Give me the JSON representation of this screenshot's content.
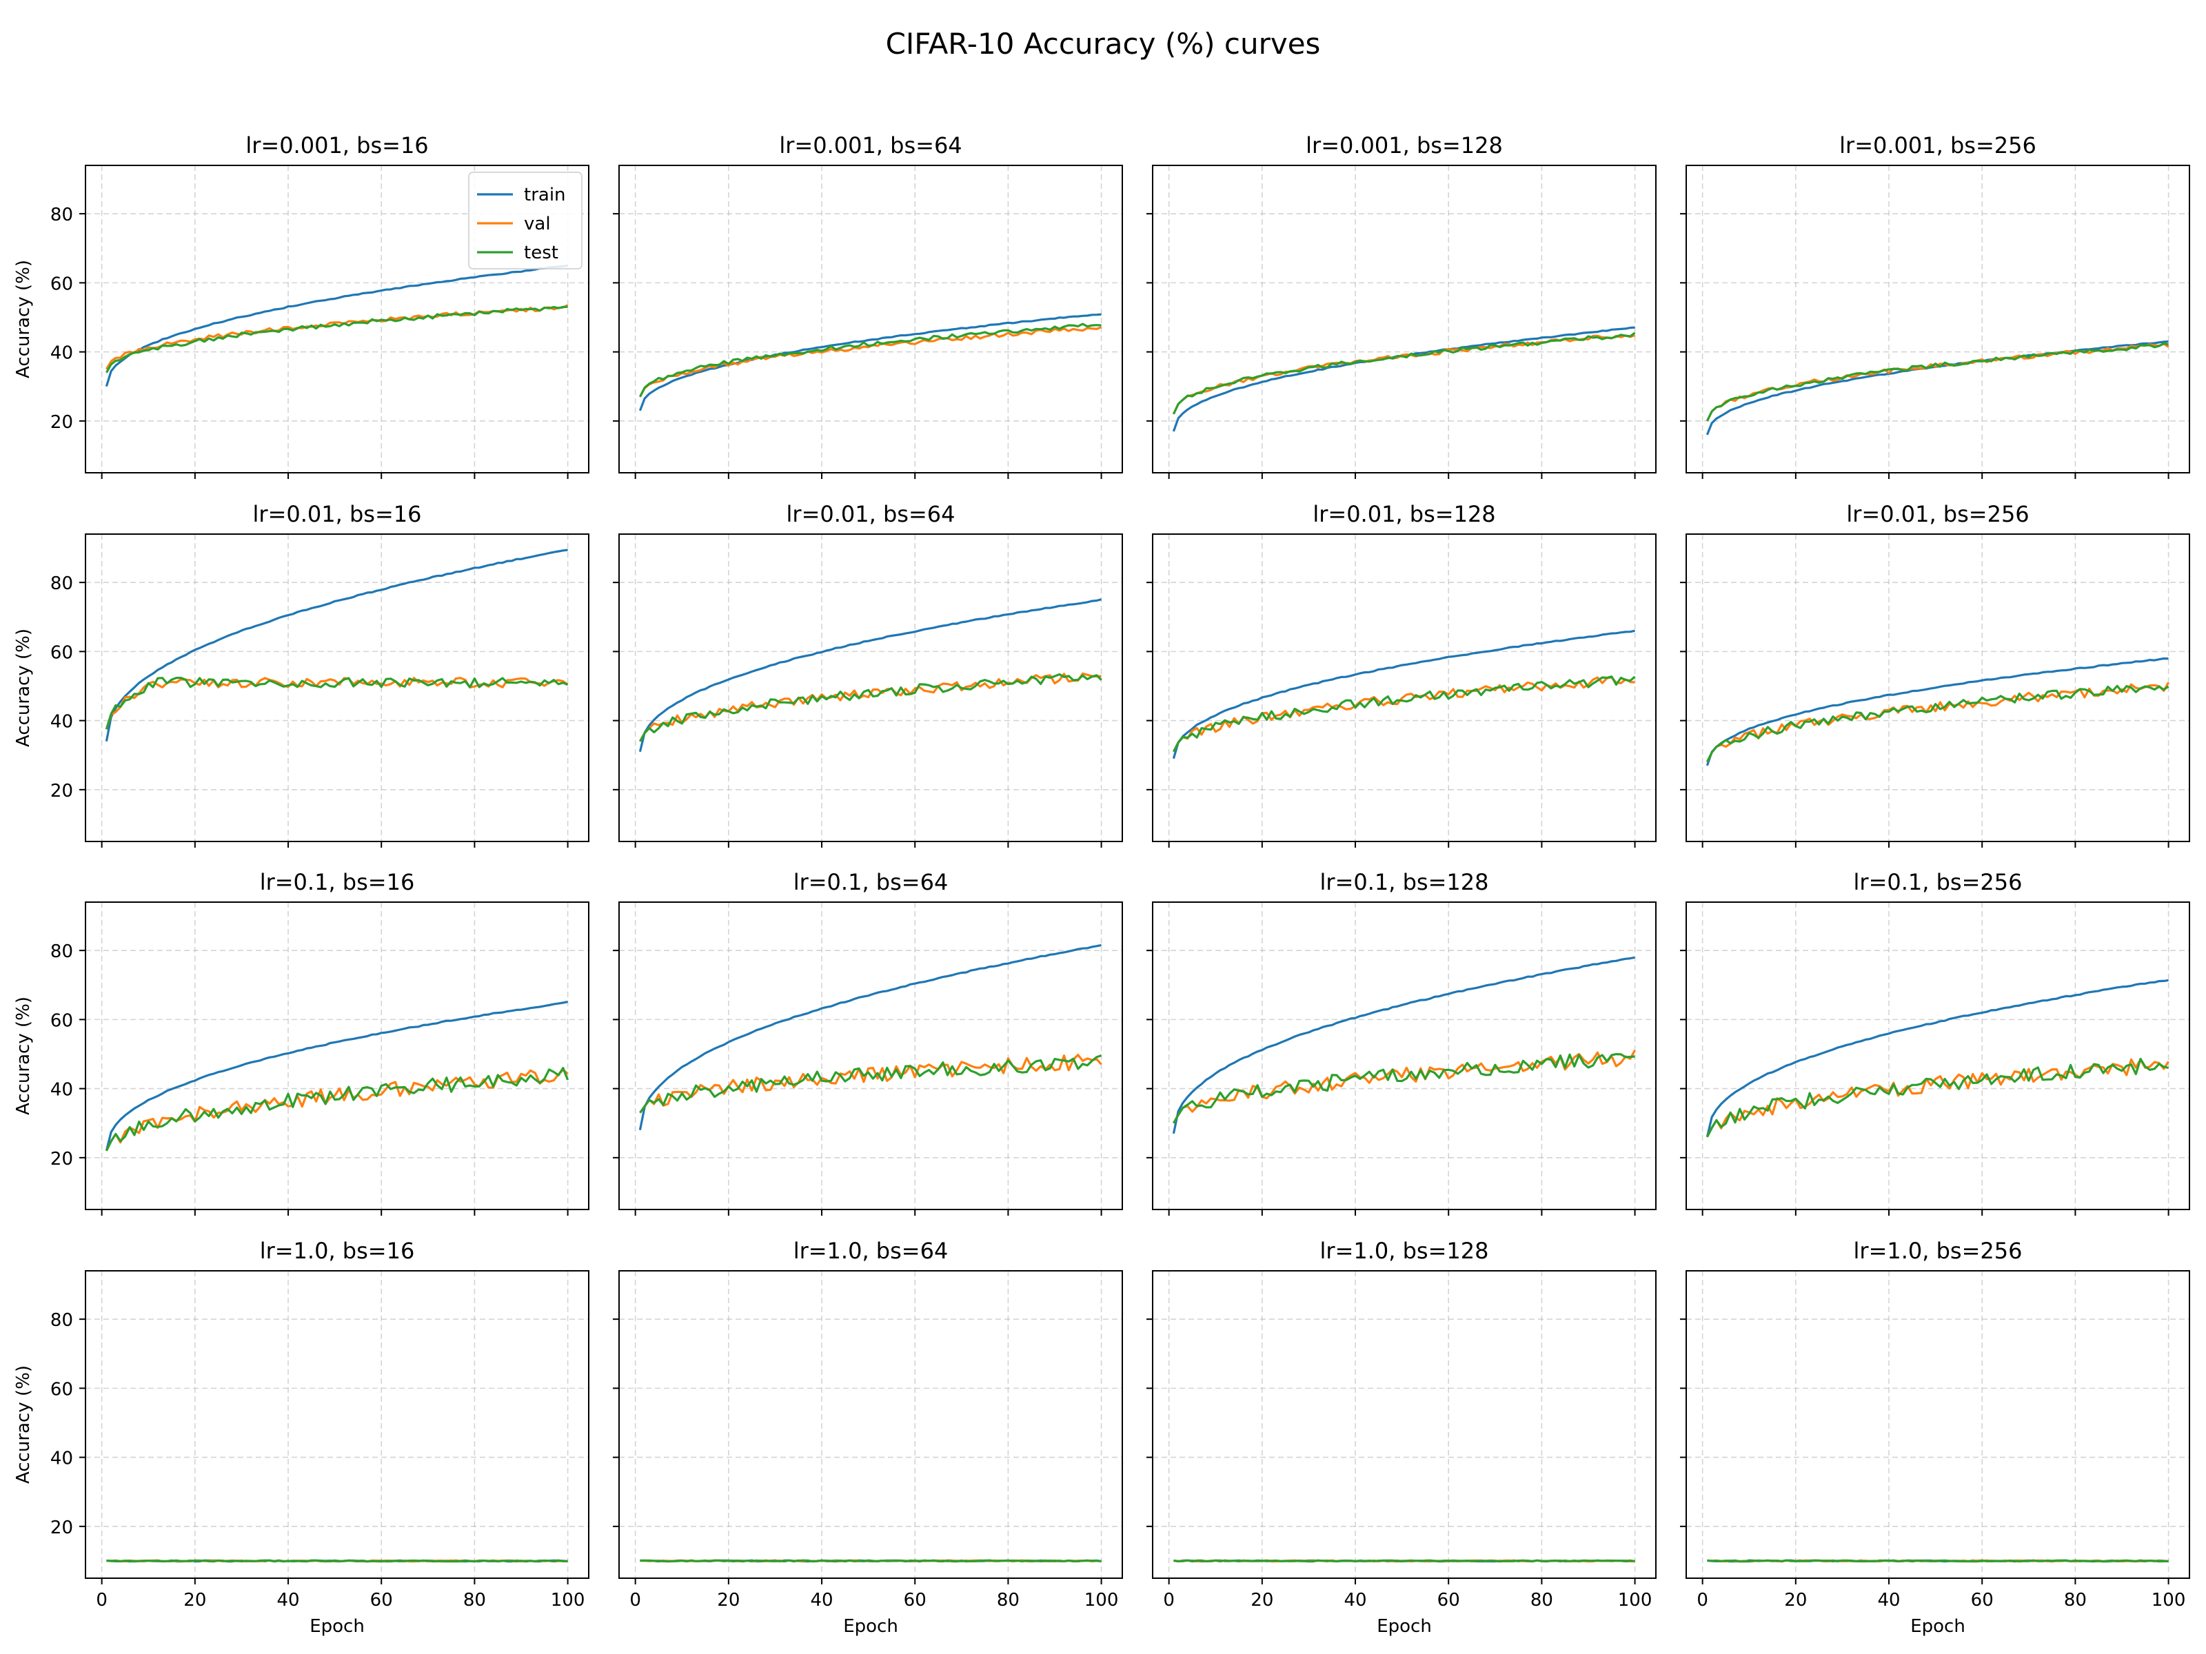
{
  "figure": {
    "title": "CIFAR-10 Accuracy (%) curves",
    "ylabel": "Accuracy (%)",
    "xlabel": "Epoch",
    "xticks": [
      0,
      20,
      40,
      60,
      80,
      100
    ],
    "yticks": [
      20,
      40,
      60,
      80
    ],
    "legend": [
      "train",
      "val",
      "test"
    ]
  },
  "colors": {
    "train": "#1f77b4",
    "val": "#ff7f0e",
    "test": "#2ca02c",
    "grid": "#b0b0b0"
  },
  "chart_data": [
    {
      "type": "line",
      "title": "lr=0.001, bs=16",
      "xlim": [
        -3.5,
        104.5
      ],
      "ylim": [
        5,
        94
      ],
      "grid": true,
      "legend": "top-right",
      "series": [
        {
          "name": "train",
          "trend": {
            "start": 30,
            "end": 65
          }
        },
        {
          "name": "val",
          "trend": {
            "start": 35,
            "end": 53
          }
        },
        {
          "name": "test",
          "trend": {
            "start": 34,
            "end": 53
          }
        }
      ]
    },
    {
      "type": "line",
      "title": "lr=0.001, bs=64",
      "xlim": [
        -3.5,
        104.5
      ],
      "ylim": [
        5,
        94
      ],
      "grid": true,
      "series": [
        {
          "name": "train",
          "trend": {
            "start": 23,
            "end": 51
          }
        },
        {
          "name": "val",
          "trend": {
            "start": 27,
            "end": 47
          }
        },
        {
          "name": "test",
          "trend": {
            "start": 27,
            "end": 48
          }
        }
      ]
    },
    {
      "type": "line",
      "title": "lr=0.001, bs=128",
      "xlim": [
        -3.5,
        104.5
      ],
      "ylim": [
        5,
        94
      ],
      "grid": true,
      "series": [
        {
          "name": "train",
          "trend": {
            "start": 17,
            "end": 47
          }
        },
        {
          "name": "val",
          "trend": {
            "start": 22,
            "end": 45
          }
        },
        {
          "name": "test",
          "trend": {
            "start": 22,
            "end": 45
          }
        }
      ]
    },
    {
      "type": "line",
      "title": "lr=0.001, bs=256",
      "xlim": [
        -3.5,
        104.5
      ],
      "ylim": [
        5,
        94
      ],
      "grid": true,
      "series": [
        {
          "name": "train",
          "trend": {
            "start": 16,
            "end": 43
          }
        },
        {
          "name": "val",
          "trend": {
            "start": 20,
            "end": 42
          }
        },
        {
          "name": "test",
          "trend": {
            "start": 20,
            "end": 42
          }
        }
      ]
    },
    {
      "type": "line",
      "title": "lr=0.01, bs=16",
      "xlim": [
        -3.5,
        104.5
      ],
      "ylim": [
        5,
        94
      ],
      "grid": true,
      "series": [
        {
          "name": "train",
          "trend": {
            "start": 34,
            "end": 89.5
          }
        },
        {
          "name": "val",
          "trend": {
            "start": 37,
            "end": 51,
            "plateau": true
          }
        },
        {
          "name": "test",
          "trend": {
            "start": 37,
            "end": 51,
            "plateau": true
          }
        }
      ]
    },
    {
      "type": "line",
      "title": "lr=0.01, bs=64",
      "xlim": [
        -3.5,
        104.5
      ],
      "ylim": [
        5,
        94
      ],
      "grid": true,
      "series": [
        {
          "name": "train",
          "trend": {
            "start": 31,
            "end": 75
          }
        },
        {
          "name": "val",
          "trend": {
            "start": 34,
            "end": 53
          }
        },
        {
          "name": "test",
          "trend": {
            "start": 34,
            "end": 53
          }
        }
      ]
    },
    {
      "type": "line",
      "title": "lr=0.01, bs=128",
      "xlim": [
        -3.5,
        104.5
      ],
      "ylim": [
        5,
        94
      ],
      "grid": true,
      "series": [
        {
          "name": "train",
          "trend": {
            "start": 29,
            "end": 66
          }
        },
        {
          "name": "val",
          "trend": {
            "start": 31,
            "end": 52
          }
        },
        {
          "name": "test",
          "trend": {
            "start": 31,
            "end": 52
          }
        }
      ]
    },
    {
      "type": "line",
      "title": "lr=0.01, bs=256",
      "xlim": [
        -3.5,
        104.5
      ],
      "ylim": [
        5,
        94
      ],
      "grid": true,
      "series": [
        {
          "name": "train",
          "trend": {
            "start": 27,
            "end": 58
          }
        },
        {
          "name": "val",
          "trend": {
            "start": 28,
            "end": 50
          }
        },
        {
          "name": "test",
          "trend": {
            "start": 28,
            "end": 50
          }
        }
      ]
    },
    {
      "type": "line",
      "title": "lr=0.1, bs=16",
      "xlim": [
        -3.5,
        104.5
      ],
      "ylim": [
        5,
        94
      ],
      "grid": true,
      "series": [
        {
          "name": "train",
          "trend": {
            "start": 22,
            "end": 65
          }
        },
        {
          "name": "val",
          "trend": {
            "start": 22,
            "end": 44
          }
        },
        {
          "name": "test",
          "trend": {
            "start": 22,
            "end": 44
          }
        }
      ]
    },
    {
      "type": "line",
      "title": "lr=0.1, bs=64",
      "xlim": [
        -3.5,
        104.5
      ],
      "ylim": [
        5,
        94
      ],
      "grid": true,
      "series": [
        {
          "name": "train",
          "trend": {
            "start": 28,
            "end": 81.5
          }
        },
        {
          "name": "val",
          "trend": {
            "start": 33,
            "end": 48
          }
        },
        {
          "name": "test",
          "trend": {
            "start": 33,
            "end": 48
          }
        }
      ]
    },
    {
      "type": "line",
      "title": "lr=0.1, bs=128",
      "xlim": [
        -3.5,
        104.5
      ],
      "ylim": [
        5,
        94
      ],
      "grid": true,
      "series": [
        {
          "name": "train",
          "trend": {
            "start": 27,
            "end": 78
          }
        },
        {
          "name": "val",
          "trend": {
            "start": 30,
            "end": 49
          }
        },
        {
          "name": "test",
          "trend": {
            "start": 30,
            "end": 49
          }
        }
      ]
    },
    {
      "type": "line",
      "title": "lr=0.1, bs=256",
      "xlim": [
        -3.5,
        104.5
      ],
      "ylim": [
        5,
        94
      ],
      "grid": true,
      "series": [
        {
          "name": "train",
          "trend": {
            "start": 26,
            "end": 71.5
          }
        },
        {
          "name": "val",
          "trend": {
            "start": 26,
            "end": 47
          }
        },
        {
          "name": "test",
          "trend": {
            "start": 26,
            "end": 47
          }
        }
      ]
    },
    {
      "type": "line",
      "title": "lr=1.0, bs=16",
      "xlim": [
        -3.5,
        104.5
      ],
      "ylim": [
        5,
        94
      ],
      "grid": true,
      "series": [
        {
          "name": "train",
          "trend": {
            "start": 10,
            "end": 10
          }
        },
        {
          "name": "val",
          "trend": {
            "start": 10,
            "end": 10
          }
        },
        {
          "name": "test",
          "trend": {
            "start": 10,
            "end": 10
          }
        }
      ]
    },
    {
      "type": "line",
      "title": "lr=1.0, bs=64",
      "xlim": [
        -3.5,
        104.5
      ],
      "ylim": [
        5,
        94
      ],
      "grid": true,
      "series": [
        {
          "name": "train",
          "trend": {
            "start": 10,
            "end": 10
          }
        },
        {
          "name": "val",
          "trend": {
            "start": 10,
            "end": 10
          }
        },
        {
          "name": "test",
          "trend": {
            "start": 10,
            "end": 10
          }
        }
      ]
    },
    {
      "type": "line",
      "title": "lr=1.0, bs=128",
      "xlim": [
        -3.5,
        104.5
      ],
      "ylim": [
        5,
        94
      ],
      "grid": true,
      "series": [
        {
          "name": "train",
          "trend": {
            "start": 10,
            "end": 10
          }
        },
        {
          "name": "val",
          "trend": {
            "start": 10,
            "end": 10
          }
        },
        {
          "name": "test",
          "trend": {
            "start": 10,
            "end": 10
          }
        }
      ]
    },
    {
      "type": "line",
      "title": "lr=1.0, bs=256",
      "xlim": [
        -3.5,
        104.5
      ],
      "ylim": [
        5,
        94
      ],
      "grid": true,
      "series": [
        {
          "name": "train",
          "trend": {
            "start": 10,
            "end": 10
          }
        },
        {
          "name": "val",
          "trend": {
            "start": 10,
            "end": 10
          }
        },
        {
          "name": "test",
          "trend": {
            "start": 10,
            "end": 10
          }
        }
      ]
    }
  ]
}
